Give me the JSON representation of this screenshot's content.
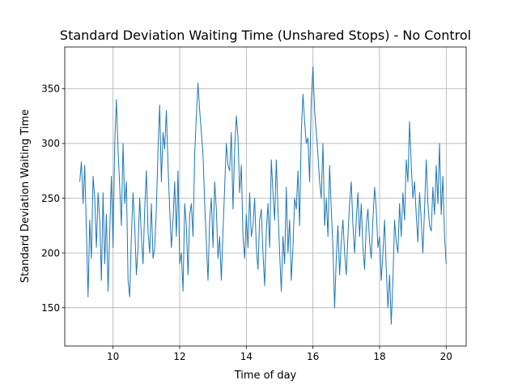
{
  "chart_data": {
    "type": "line",
    "title": "Standard Deviation Waiting Time (Unshared Stops) - No Control",
    "xlabel": "Time of day",
    "ylabel": "Standard Deviation Waiting Time",
    "xlim": [
      8.55,
      20.6
    ],
    "ylim": [
      115,
      388
    ],
    "xticks": [
      10,
      12,
      14,
      16,
      18,
      20
    ],
    "yticks": [
      150,
      200,
      250,
      300,
      350
    ],
    "grid": true,
    "series_color": "#1f77b4",
    "series": [
      {
        "x": [
          9.0,
          9.05,
          9.1,
          9.15,
          9.2,
          9.25,
          9.3,
          9.35,
          9.4,
          9.45,
          9.5,
          9.55,
          9.6,
          9.65,
          9.7,
          9.75,
          9.8,
          9.85,
          9.9,
          9.95,
          10.0,
          10.05,
          10.1,
          10.15,
          10.2,
          10.25,
          10.3,
          10.35,
          10.4,
          10.45,
          10.5,
          10.55,
          10.6,
          10.65,
          10.7,
          10.75,
          10.8,
          10.85,
          10.9,
          10.95,
          11.0,
          11.05,
          11.1,
          11.15,
          11.2,
          11.25,
          11.3,
          11.35,
          11.4,
          11.45,
          11.5,
          11.55,
          11.6,
          11.65,
          11.7,
          11.75,
          11.8,
          11.85,
          11.9,
          11.95,
          12.0,
          12.05,
          12.1,
          12.15,
          12.2,
          12.25,
          12.3,
          12.35,
          12.4,
          12.45,
          12.5,
          12.55,
          12.6,
          12.65,
          12.7,
          12.75,
          12.8,
          12.85,
          12.9,
          12.95,
          13.0,
          13.05,
          13.1,
          13.15,
          13.2,
          13.25,
          13.3,
          13.35,
          13.4,
          13.45,
          13.5,
          13.55,
          13.6,
          13.65,
          13.7,
          13.75,
          13.8,
          13.85,
          13.9,
          13.95,
          14.0,
          14.05,
          14.1,
          14.15,
          14.2,
          14.25,
          14.3,
          14.35,
          14.4,
          14.45,
          14.5,
          14.55,
          14.6,
          14.65,
          14.7,
          14.75,
          14.8,
          14.85,
          14.9,
          14.95,
          15.0,
          15.05,
          15.1,
          15.15,
          15.2,
          15.25,
          15.3,
          15.35,
          15.4,
          15.45,
          15.5,
          15.55,
          15.6,
          15.65,
          15.7,
          15.75,
          15.8,
          15.85,
          15.9,
          15.95,
          16.0,
          16.05,
          16.1,
          16.15,
          16.2,
          16.25,
          16.3,
          16.35,
          16.4,
          16.45,
          16.5,
          16.55,
          16.6,
          16.65,
          16.7,
          16.75,
          16.8,
          16.85,
          16.9,
          16.95,
          17.0,
          17.05,
          17.1,
          17.15,
          17.2,
          17.25,
          17.3,
          17.35,
          17.4,
          17.45,
          17.5,
          17.55,
          17.6,
          17.65,
          17.7,
          17.75,
          17.8,
          17.85,
          17.9,
          17.95,
          18.0,
          18.05,
          18.1,
          18.15,
          18.2,
          18.25,
          18.3,
          18.35,
          18.4,
          18.45,
          18.5,
          18.55,
          18.6,
          18.65,
          18.7,
          18.75,
          18.8,
          18.85,
          18.9,
          18.95,
          19.0,
          19.05,
          19.1,
          19.15,
          19.2,
          19.25,
          19.3,
          19.35,
          19.4,
          19.45,
          19.5,
          19.55,
          19.6,
          19.65,
          19.7,
          19.75,
          19.8,
          19.85,
          19.9,
          19.95,
          20.0
        ],
        "y": [
          265,
          283,
          245,
          280,
          220,
          160,
          230,
          195,
          270,
          250,
          205,
          255,
          230,
          175,
          255,
          190,
          235,
          165,
          220,
          270,
          205,
          300,
          340,
          295,
          260,
          225,
          300,
          245,
          265,
          175,
          160,
          215,
          255,
          225,
          180,
          205,
          250,
          215,
          190,
          240,
          275,
          220,
          200,
          245,
          195,
          205,
          240,
          295,
          335,
          265,
          310,
          295,
          330,
          280,
          240,
          205,
          230,
          265,
          215,
          275,
          190,
          200,
          165,
          245,
          225,
          180,
          235,
          245,
          215,
          290,
          325,
          355,
          330,
          310,
          290,
          245,
          210,
          175,
          230,
          250,
          205,
          265,
          240,
          195,
          215,
          175,
          220,
          260,
          300,
          280,
          275,
          310,
          240,
          295,
          325,
          305,
          255,
          280,
          215,
          195,
          235,
          205,
          255,
          215,
          225,
          250,
          205,
          185,
          230,
          240,
          200,
          170,
          220,
          245,
          205,
          285,
          255,
          230,
          285,
          240,
          200,
          165,
          215,
          190,
          260,
          200,
          230,
          175,
          205,
          250,
          240,
          275,
          225,
          310,
          345,
          320,
          300,
          305,
          265,
          340,
          370,
          330,
          310,
          290,
          265,
          250,
          300,
          225,
          250,
          215,
          280,
          240,
          205,
          150,
          195,
          225,
          180,
          210,
          230,
          200,
          180,
          215,
          245,
          265,
          225,
          200,
          230,
          255,
          215,
          245,
          205,
          185,
          225,
          240,
          210,
          195,
          230,
          260,
          240,
          205,
          215,
          175,
          200,
          230,
          185,
          150,
          180,
          135,
          175,
          230,
          210,
          200,
          245,
          215,
          255,
          230,
          285,
          265,
          320,
          280,
          250,
          265,
          235,
          210,
          255,
          230,
          200,
          240,
          285,
          245,
          225,
          220,
          260,
          235,
          280,
          245,
          300,
          235,
          270,
          215,
          190
        ]
      }
    ]
  }
}
